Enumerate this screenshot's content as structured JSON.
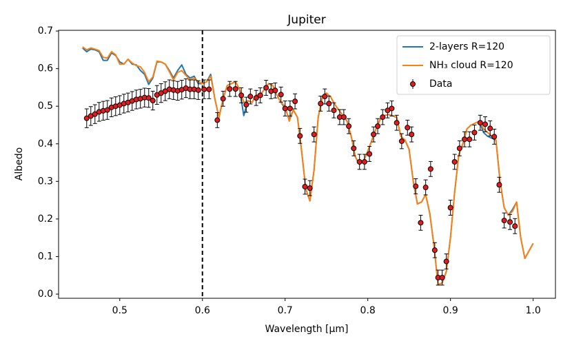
{
  "chart_data": {
    "type": "line",
    "title": "Jupiter",
    "xlabel": "Wavelength [μm]",
    "ylabel": "Albedo",
    "xlim": [
      0.426,
      1.027
    ],
    "ylim": [
      -0.011,
      0.702
    ],
    "xticks": [
      0.5,
      0.6,
      0.7,
      0.8,
      0.9,
      {
        "value": 1.0,
        "label": "1.0"
      }
    ],
    "yticks": [
      {
        "value": 0,
        "label": "0.0"
      },
      0.1,
      0.2,
      0.3,
      0.4,
      0.5,
      0.6,
      0.7
    ],
    "vline": 0.6,
    "legend": "upper right",
    "grid": false,
    "series": [
      {
        "name": "2-layers R=120",
        "color": "#1f77b4",
        "x": [
          0.455,
          0.46,
          0.465,
          0.47,
          0.475,
          0.48,
          0.485,
          0.49,
          0.495,
          0.5,
          0.505,
          0.51,
          0.515,
          0.52,
          0.525,
          0.53,
          0.535,
          0.54,
          0.545,
          0.55,
          0.555,
          0.56,
          0.565,
          0.57,
          0.575,
          0.58,
          0.585,
          0.59,
          0.595,
          0.6,
          0.605,
          0.61,
          0.615,
          0.62,
          0.625,
          0.63,
          0.635,
          0.64,
          0.645,
          0.65,
          0.655,
          0.66,
          0.665,
          0.67,
          0.675,
          0.68,
          0.685,
          0.69,
          0.695,
          0.7,
          0.705,
          0.71,
          0.715,
          0.72,
          0.725,
          0.73,
          0.735,
          0.74,
          0.745,
          0.75,
          0.755,
          0.76,
          0.765,
          0.77,
          0.775,
          0.78,
          0.785,
          0.79,
          0.795,
          0.8,
          0.805,
          0.81,
          0.815,
          0.82,
          0.825,
          0.83,
          0.835,
          0.84,
          0.845,
          0.85,
          0.855,
          0.86,
          0.865,
          0.87,
          0.875,
          0.88,
          0.885,
          0.89,
          0.895,
          0.9,
          0.905,
          0.91,
          0.915,
          0.92,
          0.925,
          0.93,
          0.935,
          0.94,
          0.945,
          0.95,
          0.955,
          0.96,
          0.965,
          0.97,
          0.975,
          0.98,
          0.985,
          0.99,
          1.0
        ],
        "values": [
          0.655,
          0.645,
          0.652,
          0.65,
          0.645,
          0.622,
          0.622,
          0.642,
          0.635,
          0.618,
          0.612,
          0.625,
          0.612,
          0.61,
          0.595,
          0.585,
          0.558,
          0.575,
          0.618,
          0.618,
          0.612,
          0.595,
          0.575,
          0.595,
          0.61,
          0.585,
          0.575,
          0.58,
          0.56,
          0.56,
          0.565,
          0.585,
          0.52,
          0.47,
          0.52,
          0.555,
          0.56,
          0.565,
          0.545,
          0.475,
          0.515,
          0.51,
          0.53,
          0.53,
          0.545,
          0.56,
          0.555,
          0.53,
          0.51,
          0.495,
          0.465,
          0.49,
          0.47,
          0.38,
          0.28,
          0.248,
          0.33,
          0.47,
          0.525,
          0.535,
          0.525,
          0.505,
          0.49,
          0.475,
          0.46,
          0.42,
          0.365,
          0.345,
          0.355,
          0.38,
          0.41,
          0.44,
          0.465,
          0.475,
          0.478,
          0.475,
          0.47,
          0.42,
          0.41,
          0.385,
          0.3,
          0.24,
          0.245,
          0.265,
          0.215,
          0.13,
          0.025,
          0.03,
          0.06,
          0.15,
          0.27,
          0.37,
          0.4,
          0.44,
          0.45,
          0.455,
          0.46,
          0.43,
          0.42,
          0.415,
          0.41,
          0.3,
          0.23,
          0.21,
          0.225,
          0.245,
          0.15,
          0.095,
          0.135
        ]
      },
      {
        "name": "NH₃ cloud R=120",
        "color": "#ff7f0e",
        "x": [
          0.455,
          0.46,
          0.465,
          0.47,
          0.475,
          0.48,
          0.485,
          0.49,
          0.495,
          0.5,
          0.505,
          0.51,
          0.515,
          0.52,
          0.525,
          0.53,
          0.535,
          0.54,
          0.545,
          0.55,
          0.555,
          0.56,
          0.565,
          0.57,
          0.575,
          0.58,
          0.585,
          0.59,
          0.595,
          0.6,
          0.605,
          0.61,
          0.615,
          0.62,
          0.625,
          0.63,
          0.635,
          0.64,
          0.645,
          0.65,
          0.655,
          0.66,
          0.665,
          0.67,
          0.675,
          0.68,
          0.685,
          0.69,
          0.695,
          0.7,
          0.705,
          0.71,
          0.715,
          0.72,
          0.725,
          0.73,
          0.735,
          0.74,
          0.745,
          0.75,
          0.755,
          0.76,
          0.765,
          0.77,
          0.775,
          0.78,
          0.785,
          0.79,
          0.795,
          0.8,
          0.805,
          0.81,
          0.815,
          0.82,
          0.825,
          0.83,
          0.835,
          0.84,
          0.845,
          0.85,
          0.855,
          0.86,
          0.865,
          0.87,
          0.875,
          0.88,
          0.885,
          0.89,
          0.895,
          0.9,
          0.905,
          0.91,
          0.915,
          0.92,
          0.925,
          0.93,
          0.935,
          0.94,
          0.945,
          0.95,
          0.955,
          0.96,
          0.965,
          0.97,
          0.975,
          0.98,
          0.985,
          0.99,
          1.0
        ],
        "values": [
          0.658,
          0.65,
          0.655,
          0.652,
          0.648,
          0.63,
          0.628,
          0.645,
          0.637,
          0.612,
          0.612,
          0.625,
          0.615,
          0.608,
          0.605,
          0.59,
          0.565,
          0.578,
          0.62,
          0.618,
          0.612,
          0.592,
          0.57,
          0.59,
          0.595,
          0.582,
          0.57,
          0.575,
          0.565,
          0.56,
          0.565,
          0.58,
          0.52,
          0.47,
          0.52,
          0.555,
          0.56,
          0.565,
          0.545,
          0.51,
          0.515,
          0.51,
          0.53,
          0.53,
          0.545,
          0.56,
          0.555,
          0.53,
          0.51,
          0.5,
          0.46,
          0.49,
          0.47,
          0.38,
          0.28,
          0.248,
          0.33,
          0.47,
          0.525,
          0.535,
          0.525,
          0.505,
          0.49,
          0.475,
          0.46,
          0.42,
          0.365,
          0.345,
          0.355,
          0.38,
          0.41,
          0.44,
          0.465,
          0.475,
          0.478,
          0.475,
          0.47,
          0.42,
          0.41,
          0.385,
          0.3,
          0.24,
          0.245,
          0.265,
          0.215,
          0.13,
          0.025,
          0.03,
          0.06,
          0.15,
          0.27,
          0.37,
          0.4,
          0.44,
          0.45,
          0.455,
          0.46,
          0.44,
          0.43,
          0.42,
          0.41,
          0.3,
          0.23,
          0.21,
          0.22,
          0.245,
          0.15,
          0.095,
          0.135
        ]
      },
      {
        "name": "Data",
        "type": "scatter",
        "color": "#e41a1c",
        "x": [
          0.46,
          0.465,
          0.47,
          0.475,
          0.48,
          0.485,
          0.49,
          0.495,
          0.5,
          0.505,
          0.51,
          0.515,
          0.52,
          0.525,
          0.53,
          0.535,
          0.54,
          0.545,
          0.55,
          0.555,
          0.56,
          0.565,
          0.57,
          0.575,
          0.58,
          0.585,
          0.59,
          0.595,
          0.602,
          0.608,
          0.618,
          0.625,
          0.633,
          0.64,
          0.647,
          0.653,
          0.658,
          0.665,
          0.67,
          0.677,
          0.683,
          0.688,
          0.695,
          0.7,
          0.706,
          0.712,
          0.718,
          0.724,
          0.73,
          0.735,
          0.743,
          0.748,
          0.753,
          0.759,
          0.766,
          0.771,
          0.777,
          0.783,
          0.79,
          0.796,
          0.802,
          0.807,
          0.812,
          0.818,
          0.824,
          0.829,
          0.835,
          0.841,
          0.848,
          0.853,
          0.858,
          0.864,
          0.87,
          0.876,
          0.881,
          0.885,
          0.89,
          0.895,
          0.9,
          0.905,
          0.911,
          0.917,
          0.923,
          0.929,
          0.936,
          0.942,
          0.948,
          0.953,
          0.959,
          0.965,
          0.972,
          0.978
        ],
        "values": [
          0.468,
          0.474,
          0.479,
          0.485,
          0.488,
          0.49,
          0.497,
          0.5,
          0.503,
          0.507,
          0.51,
          0.514,
          0.518,
          0.52,
          0.523,
          0.522,
          0.515,
          0.53,
          0.535,
          0.54,
          0.545,
          0.543,
          0.541,
          0.544,
          0.548,
          0.545,
          0.545,
          0.543,
          0.545,
          0.545,
          0.463,
          0.52,
          0.546,
          0.546,
          0.529,
          0.504,
          0.526,
          0.522,
          0.529,
          0.549,
          0.54,
          0.542,
          0.531,
          0.494,
          0.494,
          0.513,
          0.421,
          0.286,
          0.282,
          0.425,
          0.507,
          0.526,
          0.507,
          0.489,
          0.471,
          0.471,
          0.447,
          0.388,
          0.352,
          0.352,
          0.373,
          0.425,
          0.447,
          0.471,
          0.489,
          0.494,
          0.456,
          0.407,
          0.443,
          0.425,
          0.287,
          0.19,
          0.284,
          0.333,
          0.117,
          0.044,
          0.044,
          0.087,
          0.23,
          0.352,
          0.388,
          0.412,
          0.412,
          0.43,
          0.456,
          0.452,
          0.441,
          0.419,
          0.291,
          0.196,
          0.192,
          0.181
        ],
        "errors": [
          0.025,
          0.025,
          0.025,
          0.025,
          0.025,
          0.025,
          0.025,
          0.025,
          0.025,
          0.025,
          0.025,
          0.025,
          0.025,
          0.025,
          0.025,
          0.025,
          0.025,
          0.025,
          0.025,
          0.025,
          0.025,
          0.025,
          0.025,
          0.025,
          0.025,
          0.025,
          0.025,
          0.025,
          0.025,
          0.025,
          0.02,
          0.02,
          0.02,
          0.02,
          0.02,
          0.02,
          0.02,
          0.02,
          0.02,
          0.02,
          0.02,
          0.02,
          0.02,
          0.02,
          0.02,
          0.02,
          0.02,
          0.02,
          0.02,
          0.02,
          0.02,
          0.02,
          0.02,
          0.02,
          0.02,
          0.02,
          0.02,
          0.02,
          0.02,
          0.02,
          0.02,
          0.02,
          0.02,
          0.02,
          0.02,
          0.02,
          0.02,
          0.02,
          0.02,
          0.02,
          0.02,
          0.02,
          0.02,
          0.02,
          0.02,
          0.02,
          0.02,
          0.02,
          0.02,
          0.02,
          0.02,
          0.02,
          0.02,
          0.02,
          0.02,
          0.02,
          0.02,
          0.02,
          0.02,
          0.02,
          0.02,
          0.02
        ]
      }
    ]
  }
}
